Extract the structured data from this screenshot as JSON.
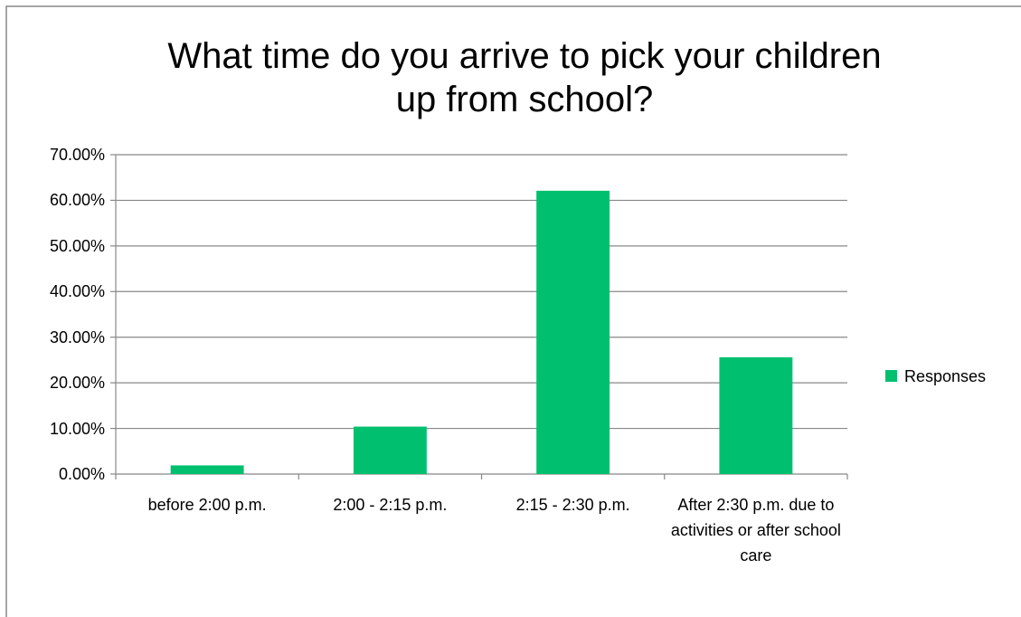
{
  "chart_data": {
    "type": "bar",
    "title": "What time do you arrive to pick your children up from school?",
    "categories": [
      "before 2:00 p.m.",
      "2:00 - 2:15 p.m.",
      "2:15 - 2:30 p.m.",
      "After 2:30 p.m. due to activities or after school care"
    ],
    "series": [
      {
        "name": "Responses",
        "color": "#00c06f",
        "values": [
          1.9,
          10.4,
          62.1,
          25.6
        ]
      }
    ],
    "ylim": [
      0,
      70
    ],
    "yticks": [
      {
        "value": 0,
        "label": "0.00%"
      },
      {
        "value": 10,
        "label": "10.00%"
      },
      {
        "value": 20,
        "label": "20.00%"
      },
      {
        "value": 30,
        "label": "30.00%"
      },
      {
        "value": 40,
        "label": "40.00%"
      },
      {
        "value": 50,
        "label": "50.00%"
      },
      {
        "value": 60,
        "label": "60.00%"
      },
      {
        "value": 70,
        "label": "70.00%"
      }
    ],
    "grid": true,
    "legend": "right"
  }
}
